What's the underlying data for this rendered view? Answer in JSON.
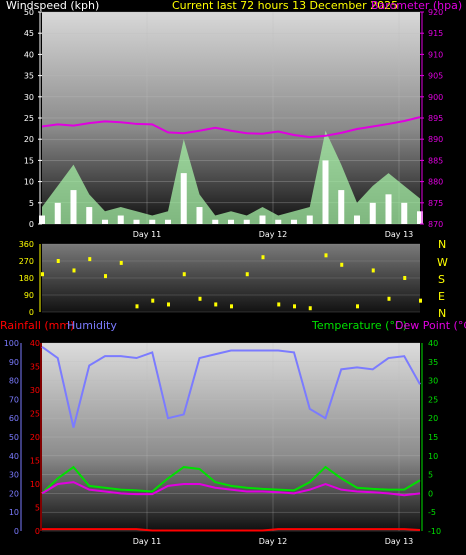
{
  "header": {
    "windspeed_label": "Windspeed (kph)",
    "title": "Current last 72 hours 13 December 2025",
    "barometer_label": "Barometer (hpa)"
  },
  "compass": {
    "letters": [
      "N",
      "W",
      "S",
      "E",
      "N"
    ]
  },
  "legend": {
    "rainfall": "Rainfall (mm)",
    "humidity": "Humidity",
    "temperature": "Temperature (°C)",
    "dewpoint": "Dew Point (°C)"
  },
  "colors": {
    "windspeed": "#ffffff",
    "gust_fill": "#a6f0a6",
    "barometer": "#e000e0",
    "direction": "#ffff00",
    "humidity": "#7b7bff",
    "rainfall": "#ff0000",
    "temperature": "#00e000",
    "dewpoint": "#e000e0"
  },
  "chart_data": [
    {
      "type": "area",
      "name": "wind-and-barometer",
      "x": [
        0,
        3,
        6,
        9,
        12,
        15,
        18,
        21,
        24,
        27,
        30,
        33,
        36,
        39,
        42,
        45,
        48,
        51,
        54,
        57,
        60,
        63,
        66,
        69,
        72
      ],
      "x_tick_labels": [
        {
          "label": "Day 11",
          "hour": 20
        },
        {
          "label": "Day 12",
          "hour": 44
        },
        {
          "label": "Day 13",
          "hour": 68
        }
      ],
      "y_left": {
        "label": "Windspeed (kph)",
        "ylim": [
          0,
          50
        ],
        "ticks": [
          0,
          5,
          10,
          15,
          20,
          25,
          30,
          35,
          40,
          45,
          50
        ]
      },
      "y_right": {
        "label": "Barometer (hpa)",
        "ylim": [
          870,
          920
        ],
        "ticks": [
          870,
          875,
          880,
          885,
          890,
          895,
          900,
          905,
          910,
          915,
          920
        ]
      },
      "series": [
        {
          "name": "Windspeed (kph)",
          "axis": "left",
          "values": [
            2,
            5,
            8,
            4,
            1,
            2,
            1,
            1,
            1,
            12,
            4,
            1,
            1,
            1,
            2,
            1,
            1,
            2,
            15,
            8,
            2,
            5,
            7,
            5,
            3
          ]
        },
        {
          "name": "Gust",
          "axis": "left",
          "values": [
            4,
            9,
            14,
            7,
            3,
            4,
            3,
            2,
            3,
            20,
            7,
            2,
            3,
            2,
            4,
            2,
            3,
            4,
            22,
            14,
            5,
            9,
            12,
            9,
            6
          ]
        },
        {
          "name": "Barometer (hpa)",
          "axis": "right",
          "values": [
            893,
            893.5,
            893.2,
            893.8,
            894.2,
            894.0,
            893.6,
            893.5,
            891.6,
            891.4,
            892.0,
            892.7,
            892.0,
            891.4,
            891.3,
            891.8,
            891.0,
            890.5,
            890.8,
            891.5,
            892.4,
            893.0,
            893.6,
            894.3,
            895.2
          ]
        }
      ]
    },
    {
      "type": "scatter",
      "name": "wind-direction",
      "x": [
        0,
        3,
        6,
        9,
        12,
        15,
        18,
        21,
        24,
        27,
        30,
        33,
        36,
        39,
        42,
        45,
        48,
        51,
        54,
        57,
        60,
        63,
        66,
        69,
        72
      ],
      "x_tick_labels": [
        {
          "label": "Day 11",
          "hour": 20
        },
        {
          "label": "Day 12",
          "hour": 44
        },
        {
          "label": "Day 13",
          "hour": 68
        }
      ],
      "y_left": {
        "ylim": [
          0,
          360
        ],
        "ticks": [
          0,
          90,
          180,
          270,
          360
        ]
      },
      "series": [
        {
          "name": "Direction",
          "values": [
            200,
            270,
            220,
            280,
            190,
            260,
            30,
            60,
            40,
            200,
            70,
            40,
            30,
            200,
            290,
            40,
            30,
            20,
            300,
            250,
            30,
            220,
            70,
            180,
            60
          ]
        }
      ]
    },
    {
      "type": "line",
      "name": "temperature-humidity-rain",
      "x": [
        0,
        3,
        6,
        9,
        12,
        15,
        18,
        21,
        24,
        27,
        30,
        33,
        36,
        39,
        42,
        45,
        48,
        51,
        54,
        57,
        60,
        63,
        66,
        69,
        72
      ],
      "x_tick_labels": [
        {
          "label": "Day 11",
          "hour": 20
        },
        {
          "label": "Day 12",
          "hour": 44
        },
        {
          "label": "Day 13",
          "hour": 68
        }
      ],
      "y_left_humidity": {
        "label": "Humidity",
        "ylim": [
          0,
          100
        ],
        "ticks": [
          0,
          10,
          20,
          30,
          40,
          50,
          60,
          70,
          80,
          90,
          100
        ]
      },
      "y_left_rainfall": {
        "label": "Rainfall (mm)",
        "ylim": [
          0,
          40
        ],
        "ticks": [
          0,
          5,
          10,
          15,
          20,
          25,
          30,
          35,
          40
        ]
      },
      "y_right_temp": {
        "label": "Temperature (°C)",
        "ylim": [
          -10,
          40
        ],
        "ticks": [
          -10,
          -5,
          0,
          5,
          10,
          15,
          20,
          25,
          30,
          35,
          40
        ]
      },
      "series": [
        {
          "name": "Humidity",
          "axis": "humidity",
          "values": [
            98,
            92,
            55,
            88,
            93,
            93,
            92,
            95,
            60,
            62,
            92,
            94,
            96,
            96,
            96,
            96,
            95,
            65,
            60,
            86,
            87,
            86,
            92,
            93,
            78
          ]
        },
        {
          "name": "Rainfall (mm)",
          "axis": "rainfall",
          "values": [
            0.4,
            0.4,
            0.4,
            0.4,
            0.4,
            0.4,
            0.4,
            0.1,
            0.1,
            0.1,
            0.1,
            0.1,
            0.1,
            0.1,
            0.1,
            0.4,
            0.4,
            0.4,
            0.4,
            0.4,
            0.4,
            0.4,
            0.4,
            0.4,
            0.2
          ]
        },
        {
          "name": "Temperature (°C)",
          "axis": "temp",
          "values": [
            0,
            4,
            7,
            2,
            1.5,
            1,
            0.8,
            0.5,
            4,
            7,
            6.5,
            3,
            2,
            1.5,
            1.2,
            1,
            0.8,
            3,
            7,
            4,
            1.5,
            1.2,
            1,
            1,
            3.5
          ]
        },
        {
          "name": "Dew Point (°C)",
          "axis": "temp",
          "values": [
            0,
            2.5,
            3,
            1,
            0.5,
            0,
            -0.2,
            -0.2,
            2,
            2.5,
            2.5,
            1.5,
            1,
            0.5,
            0.5,
            0.3,
            0,
            1,
            2.5,
            1,
            0.5,
            0.3,
            0,
            -0.5,
            0
          ]
        }
      ]
    }
  ]
}
